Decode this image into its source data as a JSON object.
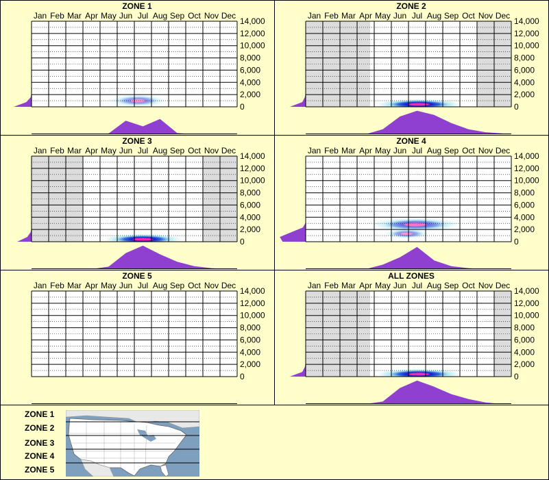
{
  "months": [
    "Jan",
    "Feb",
    "Mar",
    "Apr",
    "May",
    "Jun",
    "Jul",
    "Aug",
    "Sep",
    "Oct",
    "Nov",
    "Dec"
  ],
  "y_ticks": [
    "14,000",
    "12,000",
    "10,000",
    "8,000",
    "6,000",
    "4,000",
    "2,000",
    "0"
  ],
  "colors": {
    "background": "#ffffcc",
    "shade": "#dcdcdc",
    "density": "#9040d0",
    "hot": "#ff2aa8",
    "core": "#1a1ad0",
    "mid": "#1a5ad8",
    "glow": "#7ad8e8"
  },
  "chart_data": [
    {
      "type": "heatmap",
      "title": "ZONE 1",
      "x": "month",
      "y_range": [
        0,
        14000
      ],
      "shaded_months": [],
      "month_density": [
        0,
        0,
        0,
        0,
        0.03,
        0.55,
        0.32,
        0.62,
        0.05,
        0,
        0,
        0
      ],
      "elevation_density": [
        0.62,
        0.18,
        0.03,
        0,
        0,
        0,
        0,
        0,
        0
      ],
      "blobs": [
        {
          "month": 6.7,
          "elev": 1000,
          "month_spread": 1.6,
          "elev_spread": 1000,
          "intensity": 0.5
        }
      ]
    },
    {
      "type": "heatmap",
      "title": "ZONE 2",
      "x": "month",
      "y_range": [
        0,
        14000
      ],
      "shaded_months": [
        1,
        2,
        3,
        4,
        11,
        12
      ],
      "month_density": [
        0,
        0,
        0,
        0,
        0.2,
        0.72,
        0.95,
        0.78,
        0.45,
        0.2,
        0.08,
        0.03
      ],
      "elevation_density": [
        0.55,
        0.12,
        0.03,
        0,
        0,
        0,
        0,
        0,
        0
      ],
      "blobs": [
        {
          "month": 7.1,
          "elev": 400,
          "month_spread": 2.4,
          "elev_spread": 850,
          "intensity": 1
        }
      ]
    },
    {
      "type": "heatmap",
      "title": "ZONE 3",
      "x": "month",
      "y_range": [
        0,
        14000
      ],
      "shaded_months": [
        1,
        2,
        3,
        11,
        12
      ],
      "month_density": [
        0,
        0,
        0,
        0,
        0.1,
        0.65,
        0.95,
        0.6,
        0.3,
        0.12,
        0.04,
        0
      ],
      "elevation_density": [
        0.5,
        0.15,
        0.03,
        0,
        0,
        0,
        0,
        0,
        0
      ],
      "blobs": [
        {
          "month": 7.0,
          "elev": 400,
          "month_spread": 2.2,
          "elev_spread": 850,
          "intensity": 1
        }
      ]
    },
    {
      "type": "heatmap",
      "title": "ZONE 4",
      "x": "month",
      "y_range": [
        0,
        14000
      ],
      "shaded_months": [],
      "month_density": [
        0,
        0,
        0,
        0,
        0.18,
        0.48,
        0.9,
        0.35,
        0.12,
        0.04,
        0,
        0
      ],
      "elevation_density": [
        0.8,
        0.9,
        0.5,
        0.1,
        0,
        0,
        0,
        0,
        0
      ],
      "blobs": [
        {
          "month": 6.9,
          "elev": 2800,
          "month_spread": 2.5,
          "elev_spread": 1100,
          "intensity": 0.65
        },
        {
          "month": 6.4,
          "elev": 1300,
          "month_spread": 1.3,
          "elev_spread": 800,
          "intensity": 0.5
        }
      ]
    },
    {
      "type": "heatmap",
      "title": "ZONE 5",
      "x": "month",
      "y_range": [
        0,
        14000
      ],
      "shaded_months": [],
      "month_density": [
        0,
        0,
        0,
        0,
        0,
        0,
        0,
        0,
        0,
        0,
        0,
        0
      ],
      "elevation_density": [
        0,
        0,
        0,
        0,
        0,
        0,
        0,
        0,
        0
      ],
      "blobs": []
    },
    {
      "type": "heatmap",
      "title": "ALL ZONES",
      "x": "month",
      "y_range": [
        0,
        14000
      ],
      "shaded_months": [
        1,
        2,
        3,
        4,
        12
      ],
      "month_density": [
        0,
        0,
        0,
        0,
        0.1,
        0.65,
        0.95,
        0.7,
        0.4,
        0.2,
        0.06,
        0
      ],
      "elevation_density": [
        0.55,
        0.12,
        0.03,
        0,
        0,
        0,
        0,
        0,
        0
      ],
      "blobs": [
        {
          "month": 7.1,
          "elev": 400,
          "month_spread": 2.4,
          "elev_spread": 850,
          "intensity": 1
        }
      ]
    }
  ],
  "legend": {
    "zones": [
      "ZONE 1",
      "ZONE 2",
      "ZONE 3",
      "ZONE 4",
      "ZONE 5"
    ]
  }
}
